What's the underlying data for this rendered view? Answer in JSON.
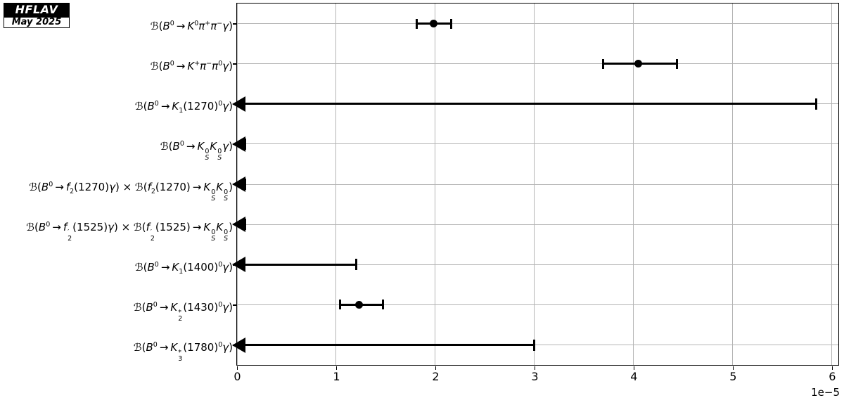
{
  "logo": {
    "title": "HFLAV",
    "date": "May 2025"
  },
  "colors": {
    "data": "#000000",
    "grid": "#b4b4b4",
    "background": "#ffffff",
    "logo_bg": "#000000"
  },
  "chart_data": {
    "type": "scatter",
    "subtype": "horizontal-errorbar-with-upper-limit-arrows",
    "title": "",
    "xlabel": "",
    "ylabel": "",
    "unit_scale_label": "1e−5",
    "grid": true,
    "legend": null,
    "x_axis": {
      "ticks": [
        "0",
        "1",
        "2",
        "3",
        "4",
        "5",
        "6"
      ],
      "tick_values": [
        0,
        1,
        2,
        3,
        4,
        5,
        6
      ],
      "range": [
        0,
        6.065
      ],
      "offset_label": "1e−5"
    },
    "rows": [
      {
        "label": "B(B0 → K0 π+ π− γ)",
        "label_html": "ℬ(<i>B</i><sup>0</sup><span class=ar>→</span><i>K</i><sup>0</sup><i>π</i><sup>+</sup><i>π</i><sup>−</sup><i>γ</i>)",
        "kind": "measurement",
        "value": 1.98,
        "lo": 1.81,
        "hi": 2.16
      },
      {
        "label": "B(B0 → K+ π− π0 γ)",
        "label_html": "ℬ(<i>B</i><sup>0</sup><span class=ar>→</span><i>K</i><sup>+</sup><i>π</i><sup>−</sup><i>π</i><sup>0</sup><i>γ</i>)",
        "kind": "measurement",
        "value": 4.05,
        "lo": 3.69,
        "hi": 4.44
      },
      {
        "label": "B(B0 → K1(1270)0 γ)",
        "label_html": "ℬ(<i>B</i><sup>0</sup><span class=ar>→</span><i>K</i><sub>1</sub>(1270)<sup>0</sup><i>γ</i>)",
        "kind": "upper_limit",
        "limit": 5.84
      },
      {
        "label": "B(B0 → KS0 KS0 γ)",
        "label_html": "ℬ(<i>B</i><sup>0</sup><span class=ar>→</span><i>K</i><span class=ss><span>0</span><span><i>S</i></span></span><i>K</i><span class=ss><span>0</span><span><i>S</i></span></span><i>γ</i>)",
        "kind": "upper_limit",
        "limit": 0.08
      },
      {
        "label": "B(B0 → f2(1270) γ) × B(f2(1270) → KS0 KS0)",
        "label_html": "ℬ(<i>B</i><sup>0</sup><span class=ar>→</span><i>f</i><sub>2</sub>(1270)<i>γ</i>) × ℬ(<i>f</i><sub>2</sub>(1270)<span class=ar>→</span><i>K</i><span class=ss><span>0</span><span><i>S</i></span></span><i>K</i><span class=ss><span>0</span><span><i>S</i></span></span>)",
        "kind": "upper_limit",
        "limit": 0.08
      },
      {
        "label": "B(B0 → f2′(1525) γ) × B(f2′(1525) → KS0 KS0)",
        "label_html": "ℬ(<i>B</i><sup>0</sup><span class=ar>→</span><i>f</i><span class=ss><span>′</span><span>2</span></span>(1525)<i>γ</i>) × ℬ(<i>f</i><span class=ss><span>′</span><span>2</span></span>(1525)<span class=ar>→</span><i>K</i><span class=ss><span>0</span><span><i>S</i></span></span><i>K</i><span class=ss><span>0</span><span><i>S</i></span></span>)",
        "kind": "upper_limit",
        "limit": 0.08
      },
      {
        "label": "B(B0 → K1(1400)0 γ)",
        "label_html": "ℬ(<i>B</i><sup>0</sup><span class=ar>→</span><i>K</i><sub>1</sub>(1400)<sup>0</sup><i>γ</i>)",
        "kind": "upper_limit",
        "limit": 1.2
      },
      {
        "label": "B(B0 → K2*(1430)0 γ)",
        "label_html": "ℬ(<i>B</i><sup>0</sup><span class=ar>→</span><i>K</i><span class=ss><span>*</span><span>2</span></span>(1430)<sup>0</sup><i>γ</i>)",
        "kind": "measurement",
        "value": 1.23,
        "lo": 1.04,
        "hi": 1.47
      },
      {
        "label": "B(B0 → K3*(1780)0 γ)",
        "label_html": "ℬ(<i>B</i><sup>0</sup><span class=ar>→</span><i>K</i><span class=ss><span>*</span><span>3</span></span>(1780)<sup>0</sup><i>γ</i>)",
        "kind": "upper_limit",
        "limit": 3.0
      }
    ]
  }
}
